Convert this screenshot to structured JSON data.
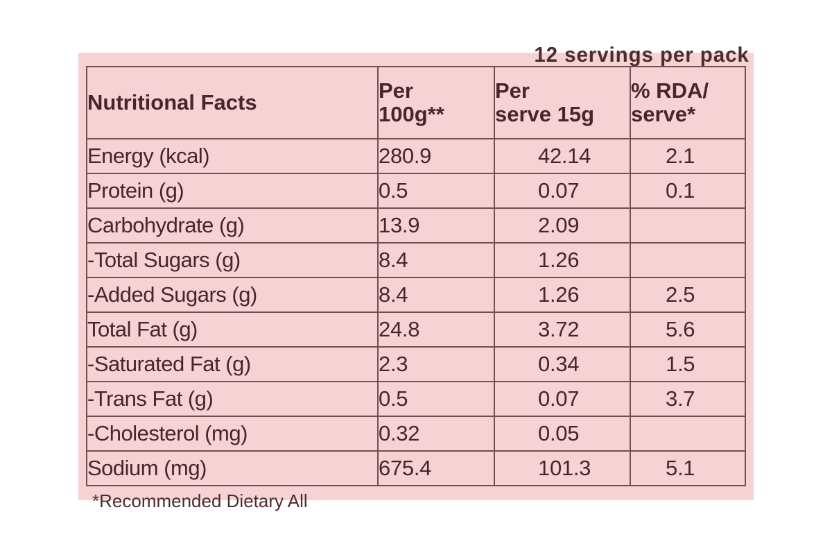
{
  "servings_text": "12 servings per pack",
  "footnote_text": "*Recommended Dietary All",
  "table": {
    "title": "Nutritional Facts",
    "headers": [
      {
        "line1": "Per",
        "line2": "100g**"
      },
      {
        "line1": "Per",
        "line2": "serve 15g"
      },
      {
        "line1": "% RDA/",
        "line2": "serve*"
      }
    ],
    "rows": [
      {
        "name": "Energy (kcal)",
        "per100g": "280.9",
        "perServe": "42.14",
        "rda": "2.1"
      },
      {
        "name": "Protein (g)",
        "per100g": "0.5",
        "perServe": "0.07",
        "rda": "0.1"
      },
      {
        "name": "Carbohydrate (g)",
        "per100g": "13.9",
        "perServe": "2.09",
        "rda": ""
      },
      {
        "name": "-Total Sugars (g)",
        "per100g": "8.4",
        "perServe": "1.26",
        "rda": ""
      },
      {
        "name": "-Added Sugars (g)",
        "per100g": "8.4",
        "perServe": "1.26",
        "rda": "2.5"
      },
      {
        "name": "Total Fat (g)",
        "per100g": "24.8",
        "perServe": "3.72",
        "rda": "5.6"
      },
      {
        "name": "-Saturated Fat (g)",
        "per100g": "2.3",
        "perServe": "0.34",
        "rda": "1.5"
      },
      {
        "name": "-Trans Fat (g)",
        "per100g": "0.5",
        "perServe": "0.07",
        "rda": "3.7"
      },
      {
        "name": "-Cholesterol (mg)",
        "per100g": "0.32",
        "perServe": "0.05",
        "rda": ""
      },
      {
        "name": "Sodium (mg)",
        "per100g": "675.4",
        "perServe": "101.3",
        "rda": "5.1"
      }
    ]
  },
  "colors": {
    "panel_background": "#f5d2d4",
    "text": "#4a2428",
    "rule": "#7a4b50"
  }
}
